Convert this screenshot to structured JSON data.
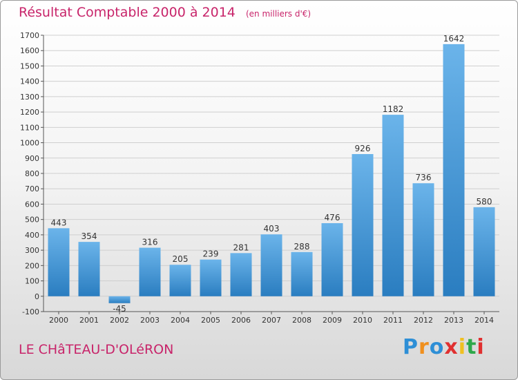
{
  "page": {
    "title": "Résultat Comptable 2000 à 2014",
    "subtitle": "(en milliers d'€)",
    "location": "LE CHâTEAU-D'OLéRON",
    "brand": {
      "letters": [
        "P",
        "r",
        "o",
        "x",
        "i",
        "t",
        "i"
      ],
      "colors": [
        "#2e8fd6",
        "#f0901e",
        "#2e8fd6",
        "#e03030",
        "#f0c020",
        "#2ea84a",
        "#e03030"
      ]
    }
  },
  "colors": {
    "accent": "#c8246a",
    "bar_light": "#6bb4ea",
    "bar_dark": "#2a7dc0",
    "grid": "#cfcfcf",
    "text": "#333333"
  },
  "chart_data": {
    "type": "bar",
    "categories": [
      "2000",
      "2001",
      "2002",
      "2003",
      "2004",
      "2005",
      "2006",
      "2007",
      "2008",
      "2009",
      "2010",
      "2011",
      "2012",
      "2013",
      "2014"
    ],
    "values": [
      443,
      354,
      -45,
      316,
      205,
      239,
      281,
      403,
      288,
      476,
      926,
      1182,
      736,
      1642,
      580
    ],
    "ylim": [
      -100,
      1700
    ],
    "yticks": [
      -100,
      0,
      100,
      200,
      300,
      400,
      500,
      600,
      700,
      800,
      900,
      1000,
      1100,
      1200,
      1300,
      1400,
      1500,
      1600,
      1700
    ],
    "grid": true,
    "legend": "none"
  }
}
